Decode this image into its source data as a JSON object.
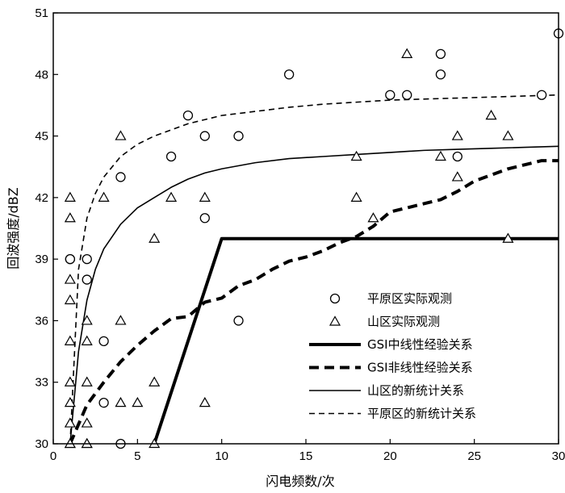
{
  "chart_data": {
    "type": "scatter",
    "xlabel": "闪电频数/次",
    "ylabel": "回波强度/dBZ",
    "xlim": [
      0,
      30
    ],
    "ylim": [
      30,
      51
    ],
    "xticks": [
      "0",
      "5",
      "10",
      "15",
      "20",
      "25",
      "30"
    ],
    "yticks": [
      "30",
      "33",
      "36",
      "39",
      "42",
      "45",
      "48",
      "51"
    ],
    "grid": false,
    "legend_position": "bottom-right",
    "series": [
      {
        "name": "平原区实际观测",
        "kind": "scatter",
        "marker": "circle",
        "points": [
          [
            1,
            39
          ],
          [
            1,
            39
          ],
          [
            2,
            39
          ],
          [
            2,
            38
          ],
          [
            3,
            35
          ],
          [
            3,
            32
          ],
          [
            4,
            30
          ],
          [
            4,
            43
          ],
          [
            7,
            44
          ],
          [
            8,
            46
          ],
          [
            9,
            45
          ],
          [
            9,
            41
          ],
          [
            11,
            45
          ],
          [
            11,
            36
          ],
          [
            14,
            48
          ],
          [
            20,
            47
          ],
          [
            21,
            47
          ],
          [
            23,
            49
          ],
          [
            23,
            48
          ],
          [
            24,
            44
          ],
          [
            29,
            47
          ],
          [
            30,
            50
          ]
        ]
      },
      {
        "name": "山区实际观测",
        "kind": "scatter",
        "marker": "triangle",
        "points": [
          [
            1,
            42
          ],
          [
            1,
            41
          ],
          [
            1,
            38
          ],
          [
            1,
            37
          ],
          [
            1,
            35
          ],
          [
            1,
            33
          ],
          [
            1,
            32
          ],
          [
            1,
            31
          ],
          [
            1,
            30
          ],
          [
            1,
            30
          ],
          [
            2,
            36
          ],
          [
            2,
            35
          ],
          [
            2,
            33
          ],
          [
            2,
            31
          ],
          [
            2,
            30
          ],
          [
            2,
            30
          ],
          [
            3,
            42
          ],
          [
            4,
            45
          ],
          [
            4,
            36
          ],
          [
            4,
            32
          ],
          [
            5,
            32
          ],
          [
            6,
            40
          ],
          [
            6,
            33
          ],
          [
            6,
            30
          ],
          [
            7,
            42
          ],
          [
            9,
            42
          ],
          [
            9,
            32
          ],
          [
            18,
            44
          ],
          [
            18,
            42
          ],
          [
            19,
            41
          ],
          [
            21,
            49
          ],
          [
            23,
            44
          ],
          [
            24,
            45
          ],
          [
            24,
            43
          ],
          [
            26,
            46
          ],
          [
            27,
            45
          ],
          [
            27,
            40
          ]
        ]
      },
      {
        "name": "GSI中线性经验关系",
        "kind": "line",
        "style": "thick-solid",
        "points": [
          [
            6,
            30
          ],
          [
            10,
            40
          ],
          [
            30,
            40
          ]
        ]
      },
      {
        "name": "GSI非线性经验关系",
        "kind": "line",
        "style": "thick-dashed",
        "points": [
          [
            1,
            30
          ],
          [
            2,
            31.9
          ],
          [
            3,
            33
          ],
          [
            4,
            34
          ],
          [
            5,
            34.8
          ],
          [
            6,
            35.5
          ],
          [
            7,
            36.1
          ],
          [
            8,
            36.2
          ],
          [
            9,
            36.9
          ],
          [
            10,
            37.1
          ],
          [
            11,
            37.7
          ],
          [
            12,
            38
          ],
          [
            13,
            38.5
          ],
          [
            14,
            38.9
          ],
          [
            15,
            39.1
          ],
          [
            16,
            39.4
          ],
          [
            17,
            39.8
          ],
          [
            18,
            40.1
          ],
          [
            19,
            40.6
          ],
          [
            20,
            41.3
          ],
          [
            21,
            41.5
          ],
          [
            22,
            41.7
          ],
          [
            23,
            41.9
          ],
          [
            24,
            42.3
          ],
          [
            25,
            42.8
          ],
          [
            26,
            43.1
          ],
          [
            27,
            43.4
          ],
          [
            28,
            43.6
          ],
          [
            29,
            43.8
          ],
          [
            30,
            43.8
          ]
        ]
      },
      {
        "name": "山区的新统计关系",
        "kind": "line",
        "style": "thin-solid",
        "points": [
          [
            1,
            30
          ],
          [
            1.5,
            34.5
          ],
          [
            2,
            37
          ],
          [
            2.5,
            38.5
          ],
          [
            3,
            39.5
          ],
          [
            4,
            40.7
          ],
          [
            5,
            41.5
          ],
          [
            6,
            42
          ],
          [
            7,
            42.5
          ],
          [
            8,
            42.9
          ],
          [
            9,
            43.2
          ],
          [
            10,
            43.4
          ],
          [
            12,
            43.7
          ],
          [
            14,
            43.9
          ],
          [
            16,
            44
          ],
          [
            18,
            44.1
          ],
          [
            20,
            44.2
          ],
          [
            22,
            44.3
          ],
          [
            24,
            44.35
          ],
          [
            26,
            44.4
          ],
          [
            28,
            44.45
          ],
          [
            30,
            44.5
          ]
        ]
      },
      {
        "name": "平原区的新统计关系",
        "kind": "line",
        "style": "thin-dashed",
        "points": [
          [
            1,
            30
          ],
          [
            1.5,
            38.5
          ],
          [
            2,
            41
          ],
          [
            2.5,
            42.2
          ],
          [
            3,
            43
          ],
          [
            4,
            44
          ],
          [
            5,
            44.6
          ],
          [
            6,
            45
          ],
          [
            7,
            45.3
          ],
          [
            8,
            45.6
          ],
          [
            9,
            45.8
          ],
          [
            10,
            46
          ],
          [
            12,
            46.2
          ],
          [
            14,
            46.4
          ],
          [
            16,
            46.55
          ],
          [
            18,
            46.65
          ],
          [
            20,
            46.75
          ],
          [
            22,
            46.8
          ],
          [
            24,
            46.85
          ],
          [
            26,
            46.9
          ],
          [
            28,
            46.95
          ],
          [
            30,
            47
          ]
        ]
      }
    ]
  }
}
